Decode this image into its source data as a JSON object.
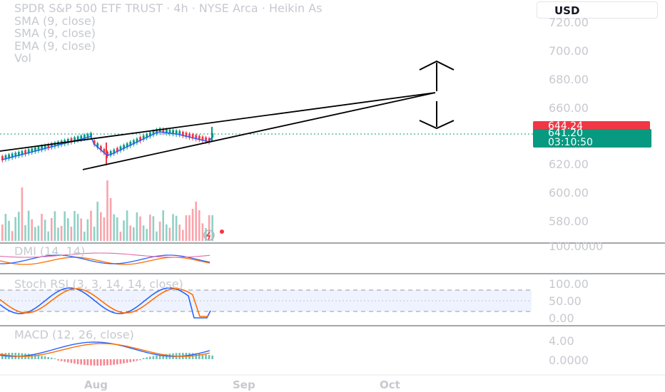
{
  "legend": {
    "title": "SPDR S&P 500 ETF TRUST · 4h · NYSE Arca · Heikin As",
    "indicators": [
      "SMA (9, close)",
      "SMA (9, close)",
      "EMA (9, close)",
      "Vol"
    ]
  },
  "currency_button": "USD",
  "price_axis": [
    "720.00",
    "700.00",
    "680.00",
    "660.00",
    "620.00",
    "600.00",
    "580.00"
  ],
  "price_tags": {
    "red": "644.24",
    "green_price": "641.20",
    "green_countdown": "03:10:50"
  },
  "panes": {
    "dmi": {
      "label": "DMI (14, 14)",
      "axis": [
        "100.0000"
      ]
    },
    "stoch": {
      "label": "Stoch RSI (3, 3, 14, 14, close)",
      "axis": [
        "100.00",
        "50.00",
        "0.00"
      ]
    },
    "macd": {
      "label": "MACD (12, 26, close)",
      "axis": [
        "4.00",
        "0.0000"
      ]
    }
  },
  "time_axis": [
    "Aug",
    "Sep",
    "Oct"
  ],
  "colors": {
    "up": "#089981",
    "down": "#f23645",
    "accent": "#2962ff",
    "orange": "#ff6d00"
  },
  "icons": [
    "lightning-icon"
  ]
}
